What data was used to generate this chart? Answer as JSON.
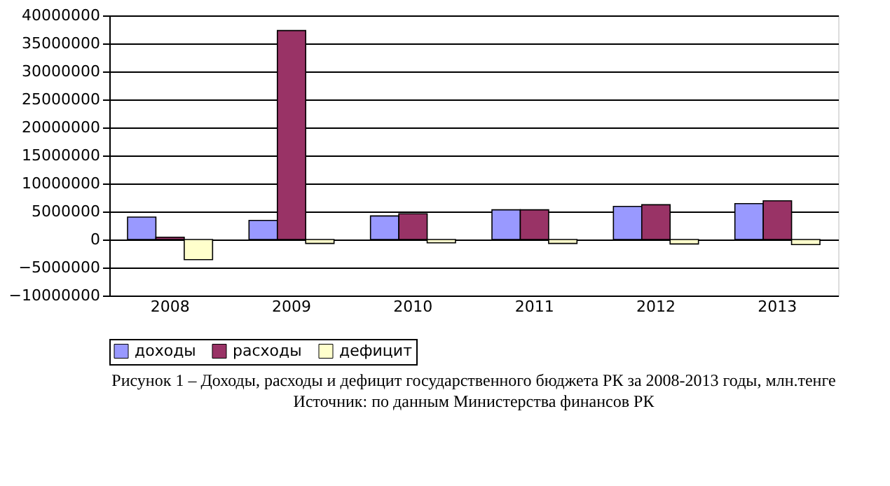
{
  "chart_data": {
    "type": "bar",
    "title": "Рисунок 1 – Доходы, расходы и дефицит государственного бюджета РК за 2008-2013 годы, млн.тенге",
    "annotations": [
      "Источник: по данным Министерства финансов РК"
    ],
    "categories": [
      "2008",
      "2009",
      "2010",
      "2011",
      "2012",
      "2013"
    ],
    "series": [
      {
        "name": "доходы",
        "color": "#9999ff",
        "values": [
          4000000,
          3400000,
          4200000,
          5300000,
          5900000,
          6400000
        ]
      },
      {
        "name": "расходы",
        "color": "#993366",
        "values": [
          400000,
          37300000,
          4600000,
          5300000,
          6200000,
          6900000
        ]
      },
      {
        "name": "дефицит",
        "color": "#ffffcc",
        "values": [
          -3600000,
          -700000,
          -600000,
          -700000,
          -800000,
          -900000
        ]
      }
    ],
    "ylim": [
      -10000000,
      40000000
    ],
    "yticks": [
      -10000000,
      -5000000,
      0,
      5000000,
      10000000,
      15000000,
      20000000,
      25000000,
      30000000,
      35000000,
      40000000
    ],
    "grid": "y",
    "legend": "bottom"
  }
}
